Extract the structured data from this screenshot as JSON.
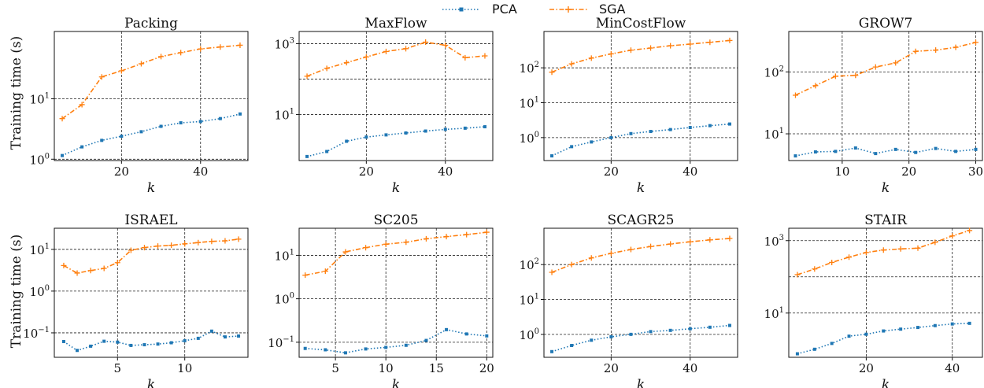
{
  "legend": [
    {
      "name": "PCA",
      "color": "#1f77b4",
      "marker": "square",
      "dash": "dotted"
    },
    {
      "name": "SGA",
      "color": "#ff7f0e",
      "marker": "plus",
      "dash": "dashdot"
    }
  ],
  "ylabel": "Training time (s)",
  "chart_data": [
    {
      "type": "line",
      "title": "Packing",
      "xlabel": "k",
      "ylabel": "Training time (s)",
      "yscale": "log",
      "xlim": [
        3,
        52
      ],
      "ylim": [
        0.95,
        130
      ],
      "xticks": [
        20,
        40
      ],
      "yticks": [
        {
          "v": 1,
          "label": "10^0"
        },
        {
          "v": 10,
          "label": "10^1"
        }
      ],
      "grid_x": [
        20,
        40
      ],
      "grid_y": [
        1,
        10
      ],
      "series": [
        {
          "name": "PCA",
          "x": [
            5,
            10,
            15,
            20,
            25,
            30,
            35,
            40,
            45,
            50
          ],
          "values": [
            1.15,
            1.6,
            2.05,
            2.4,
            2.85,
            3.5,
            4.0,
            4.2,
            4.7,
            5.6
          ]
        },
        {
          "name": "SGA",
          "x": [
            5,
            10,
            15,
            20,
            25,
            30,
            35,
            40,
            45,
            50
          ],
          "values": [
            4.7,
            8.0,
            23,
            29,
            38,
            50,
            58,
            67,
            72,
            77
          ]
        }
      ]
    },
    {
      "type": "line",
      "title": "MaxFlow",
      "xlabel": "k",
      "ylabel": "",
      "yscale": "log",
      "xlim": [
        3,
        52
      ],
      "ylim": [
        0.5,
        2200
      ],
      "xticks": [
        20,
        40
      ],
      "yticks": [
        {
          "v": 10,
          "label": "10^1"
        },
        {
          "v": 1000,
          "label": "10^3"
        }
      ],
      "grid_x": [
        20,
        40
      ],
      "grid_y": [
        10,
        100,
        1000
      ],
      "series": [
        {
          "name": "PCA",
          "x": [
            5,
            10,
            15,
            20,
            25,
            30,
            35,
            40,
            45,
            50
          ],
          "values": [
            0.65,
            0.9,
            1.75,
            2.3,
            2.65,
            3.0,
            3.4,
            3.8,
            4.1,
            4.5
          ]
        },
        {
          "name": "SGA",
          "x": [
            5,
            10,
            15,
            20,
            25,
            30,
            35,
            40,
            45,
            50
          ],
          "values": [
            120,
            200,
            290,
            420,
            600,
            720,
            1100,
            900,
            400,
            450
          ]
        }
      ]
    },
    {
      "type": "line",
      "title": "MinCostFlow",
      "xlabel": "k",
      "ylabel": "",
      "yscale": "log",
      "xlim": [
        3,
        52
      ],
      "ylim": [
        0.22,
        1100
      ],
      "xticks": [
        20,
        40
      ],
      "yticks": [
        {
          "v": 1,
          "label": "10^0"
        },
        {
          "v": 10,
          "label": "10^1"
        },
        {
          "v": 100,
          "label": "10^2"
        }
      ],
      "grid_x": [
        20,
        40
      ],
      "grid_y": [
        1,
        10,
        100
      ],
      "series": [
        {
          "name": "PCA",
          "x": [
            5,
            10,
            15,
            20,
            25,
            30,
            35,
            40,
            45,
            50
          ],
          "values": [
            0.3,
            0.55,
            0.75,
            1.0,
            1.3,
            1.5,
            1.7,
            1.95,
            2.2,
            2.45
          ]
        },
        {
          "name": "SGA",
          "x": [
            5,
            10,
            15,
            20,
            25,
            30,
            35,
            40,
            45,
            50
          ],
          "values": [
            75,
            130,
            190,
            250,
            320,
            370,
            430,
            480,
            540,
            610
          ]
        }
      ]
    },
    {
      "type": "line",
      "title": "GROW7",
      "xlabel": "k",
      "ylabel": "",
      "yscale": "log",
      "xlim": [
        2,
        31
      ],
      "ylim": [
        3.7,
        450
      ],
      "xticks": [
        10,
        20,
        30
      ],
      "yticks": [
        {
          "v": 10,
          "label": "10^1"
        },
        {
          "v": 100,
          "label": "10^2"
        }
      ],
      "grid_x": [
        10,
        20,
        30
      ],
      "grid_y": [
        10,
        100
      ],
      "series": [
        {
          "name": "PCA",
          "x": [
            3,
            6,
            9,
            12,
            15,
            18,
            21,
            24,
            27,
            30
          ],
          "values": [
            4.4,
            5.1,
            5.2,
            5.9,
            4.8,
            5.6,
            5.0,
            5.8,
            5.2,
            5.6
          ]
        },
        {
          "name": "SGA",
          "x": [
            3,
            6,
            9,
            12,
            15,
            18,
            21,
            24,
            27,
            30
          ],
          "values": [
            42,
            60,
            85,
            88,
            120,
            140,
            215,
            225,
            250,
            300
          ]
        }
      ]
    },
    {
      "type": "line",
      "title": "ISRAEL",
      "xlabel": "k",
      "ylabel": "Training time (s)",
      "yscale": "log",
      "xlim": [
        0.3,
        14.7
      ],
      "ylim": [
        0.026,
        32
      ],
      "xticks": [
        5,
        10
      ],
      "yticks": [
        {
          "v": 0.1,
          "label": "10^{-1}"
        },
        {
          "v": 1,
          "label": "10^0"
        },
        {
          "v": 10,
          "label": "10^1"
        }
      ],
      "grid_x": [
        5,
        10
      ],
      "grid_y": [
        0.1,
        1,
        10
      ],
      "series": [
        {
          "name": "PCA",
          "x": [
            1,
            2,
            3,
            4,
            5,
            6,
            7,
            8,
            9,
            10,
            11,
            12,
            13,
            14
          ],
          "values": [
            0.062,
            0.038,
            0.048,
            0.063,
            0.06,
            0.05,
            0.052,
            0.054,
            0.058,
            0.065,
            0.074,
            0.11,
            0.08,
            0.084
          ]
        },
        {
          "name": "SGA",
          "x": [
            1,
            2,
            3,
            4,
            5,
            6,
            7,
            8,
            9,
            10,
            11,
            12,
            13,
            14
          ],
          "values": [
            4.1,
            2.7,
            3.1,
            3.5,
            4.8,
            9.5,
            11,
            12,
            12.5,
            13.5,
            14.5,
            15.5,
            16,
            17.5
          ]
        }
      ]
    },
    {
      "type": "line",
      "title": "SC205",
      "xlabel": "k",
      "ylabel": "",
      "yscale": "log",
      "xlim": [
        1.4,
        20.6
      ],
      "ylim": [
        0.045,
        42
      ],
      "xticks": [
        5,
        10,
        15,
        20
      ],
      "yticks": [
        {
          "v": 0.1,
          "label": "10^{-1}"
        },
        {
          "v": 1,
          "label": "10^0"
        },
        {
          "v": 10,
          "label": "10^1"
        }
      ],
      "grid_x": [
        5,
        10,
        15,
        20
      ],
      "grid_y": [
        0.1,
        1,
        10
      ],
      "series": [
        {
          "name": "PCA",
          "x": [
            2,
            4,
            6,
            8,
            10,
            12,
            14,
            16,
            18,
            20
          ],
          "values": [
            0.072,
            0.067,
            0.057,
            0.07,
            0.076,
            0.085,
            0.11,
            0.195,
            0.155,
            0.14
          ]
        },
        {
          "name": "SGA",
          "x": [
            2,
            4,
            6,
            8,
            10,
            12,
            14,
            16,
            18,
            20
          ],
          "values": [
            3.5,
            4.3,
            12,
            15,
            18,
            20,
            24,
            27,
            30,
            34
          ]
        }
      ]
    },
    {
      "type": "line",
      "title": "SCAGR25",
      "xlabel": "k",
      "ylabel": "",
      "yscale": "log",
      "xlim": [
        3,
        52
      ],
      "ylim": [
        0.22,
        1100
      ],
      "xticks": [
        20,
        40
      ],
      "yticks": [
        {
          "v": 1,
          "label": "10^0"
        },
        {
          "v": 10,
          "label": "10^1"
        },
        {
          "v": 100,
          "label": "10^2"
        }
      ],
      "grid_x": [
        20,
        40
      ],
      "grid_y": [
        1,
        10,
        100
      ],
      "series": [
        {
          "name": "PCA",
          "x": [
            5,
            10,
            15,
            20,
            25,
            30,
            35,
            40,
            45,
            50
          ],
          "values": [
            0.32,
            0.48,
            0.68,
            0.85,
            1.0,
            1.2,
            1.3,
            1.45,
            1.6,
            1.8
          ]
        },
        {
          "name": "SGA",
          "x": [
            5,
            10,
            15,
            20,
            25,
            30,
            35,
            40,
            45,
            50
          ],
          "values": [
            60,
            100,
            155,
            210,
            270,
            330,
            390,
            450,
            510,
            560
          ]
        }
      ]
    },
    {
      "type": "line",
      "title": "STAIR",
      "xlabel": "k",
      "ylabel": "",
      "yscale": "log",
      "xlim": [
        2,
        47
      ],
      "ylim": [
        0.6,
        2200
      ],
      "xticks": [
        20,
        40
      ],
      "yticks": [
        {
          "v": 10,
          "label": "10^1"
        },
        {
          "v": 1000,
          "label": "10^3"
        }
      ],
      "grid_x": [
        20,
        40
      ],
      "grid_y": [
        10,
        100,
        1000
      ],
      "series": [
        {
          "name": "PCA",
          "x": [
            4,
            8,
            12,
            16,
            20,
            24,
            28,
            32,
            36,
            40,
            44
          ],
          "values": [
            0.75,
            1.0,
            1.45,
            2.3,
            2.6,
            3.2,
            3.6,
            4.0,
            4.5,
            5.0,
            5.2
          ]
        },
        {
          "name": "SGA",
          "x": [
            4,
            8,
            12,
            16,
            20,
            24,
            28,
            32,
            36,
            40,
            44
          ],
          "values": [
            115,
            165,
            250,
            350,
            470,
            550,
            590,
            620,
            900,
            1350,
            1900
          ]
        }
      ]
    }
  ]
}
